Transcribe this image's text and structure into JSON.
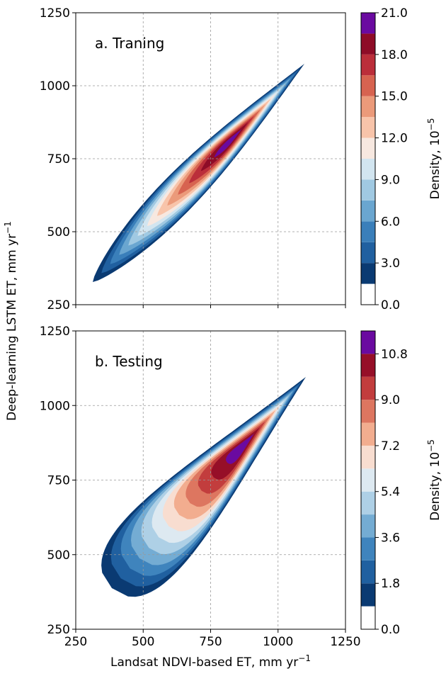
{
  "chart_data": [
    {
      "type": "density",
      "annotation": "a. Traning",
      "xlim": [
        250,
        1250
      ],
      "xticks": [
        250,
        500,
        750,
        1000,
        1250
      ],
      "ylim": [
        250,
        1250
      ],
      "yticks": [
        250,
        500,
        750,
        1000,
        1250
      ],
      "grid": true,
      "ylabel": {
        "text": "Deep-learning LSTM ET, mm yr",
        "sup": "−1"
      },
      "colorbar": {
        "label": "Density, 10",
        "sup": "−5",
        "levels": [
          0,
          1.5,
          3,
          4.5,
          6,
          7.5,
          9,
          10.5,
          12,
          13.5,
          15,
          16.5,
          18,
          19.5,
          21
        ],
        "colors": [
          "#ffffff",
          "#0a3a72",
          "#2060a0",
          "#3a7fba",
          "#6aa6d0",
          "#a0c9e2",
          "#d2e5f0",
          "#f7e8e0",
          "#f8c4aa",
          "#eb9a7a",
          "#d76350",
          "#bb2e3a",
          "#8e0c27",
          "#6a0aa0"
        ],
        "ticks": [
          {
            "value": 0,
            "label": "0.0"
          },
          {
            "value": 3,
            "label": "3.0"
          },
          {
            "value": 6,
            "label": "6.0"
          },
          {
            "value": 9,
            "label": "9.0"
          },
          {
            "value": 12,
            "label": "12.0"
          },
          {
            "value": 15,
            "label": "15.0"
          },
          {
            "value": 18,
            "label": "18.0"
          },
          {
            "value": 21,
            "label": "21.0"
          }
        ]
      }
    },
    {
      "type": "density",
      "annotation": "b. Testing",
      "xlim": [
        250,
        1250
      ],
      "xticks": [
        250,
        500,
        750,
        1000,
        1250
      ],
      "ylim": [
        250,
        1250
      ],
      "yticks": [
        250,
        500,
        750,
        1000,
        1250
      ],
      "grid": true,
      "xlabel": {
        "text": "Landsat NDVI-based ET, mm yr",
        "sup": "−1"
      },
      "colorbar": {
        "label": "Density, 10",
        "sup": "−5",
        "levels": [
          0,
          0.9,
          1.8,
          2.7,
          3.6,
          4.5,
          5.4,
          6.3,
          7.2,
          8.1,
          9,
          9.9,
          10.8,
          11.7
        ],
        "colors": [
          "#ffffff",
          "#0a3a72",
          "#2060a0",
          "#3f84bd",
          "#74acd3",
          "#aed0e6",
          "#dde9f1",
          "#f8ddd0",
          "#f2ad8f",
          "#dd7660",
          "#c23d3d",
          "#960f28",
          "#6a0aa0"
        ],
        "ticks": [
          {
            "value": 0,
            "label": "0.0"
          },
          1.8,
          3.6,
          5.4,
          7.2,
          {
            "value": 9,
            "label": "9.0"
          },
          10.8
        ]
      }
    }
  ]
}
